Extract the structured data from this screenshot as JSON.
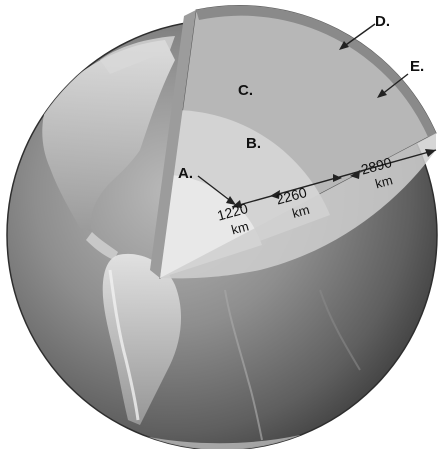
{
  "labels": {
    "a": "A.",
    "b": "B.",
    "c": "C.",
    "d": "D.",
    "e": "E."
  },
  "distances": {
    "inner": "1220",
    "outer_core": "2260",
    "mantle": "2890",
    "unit": "km"
  }
}
